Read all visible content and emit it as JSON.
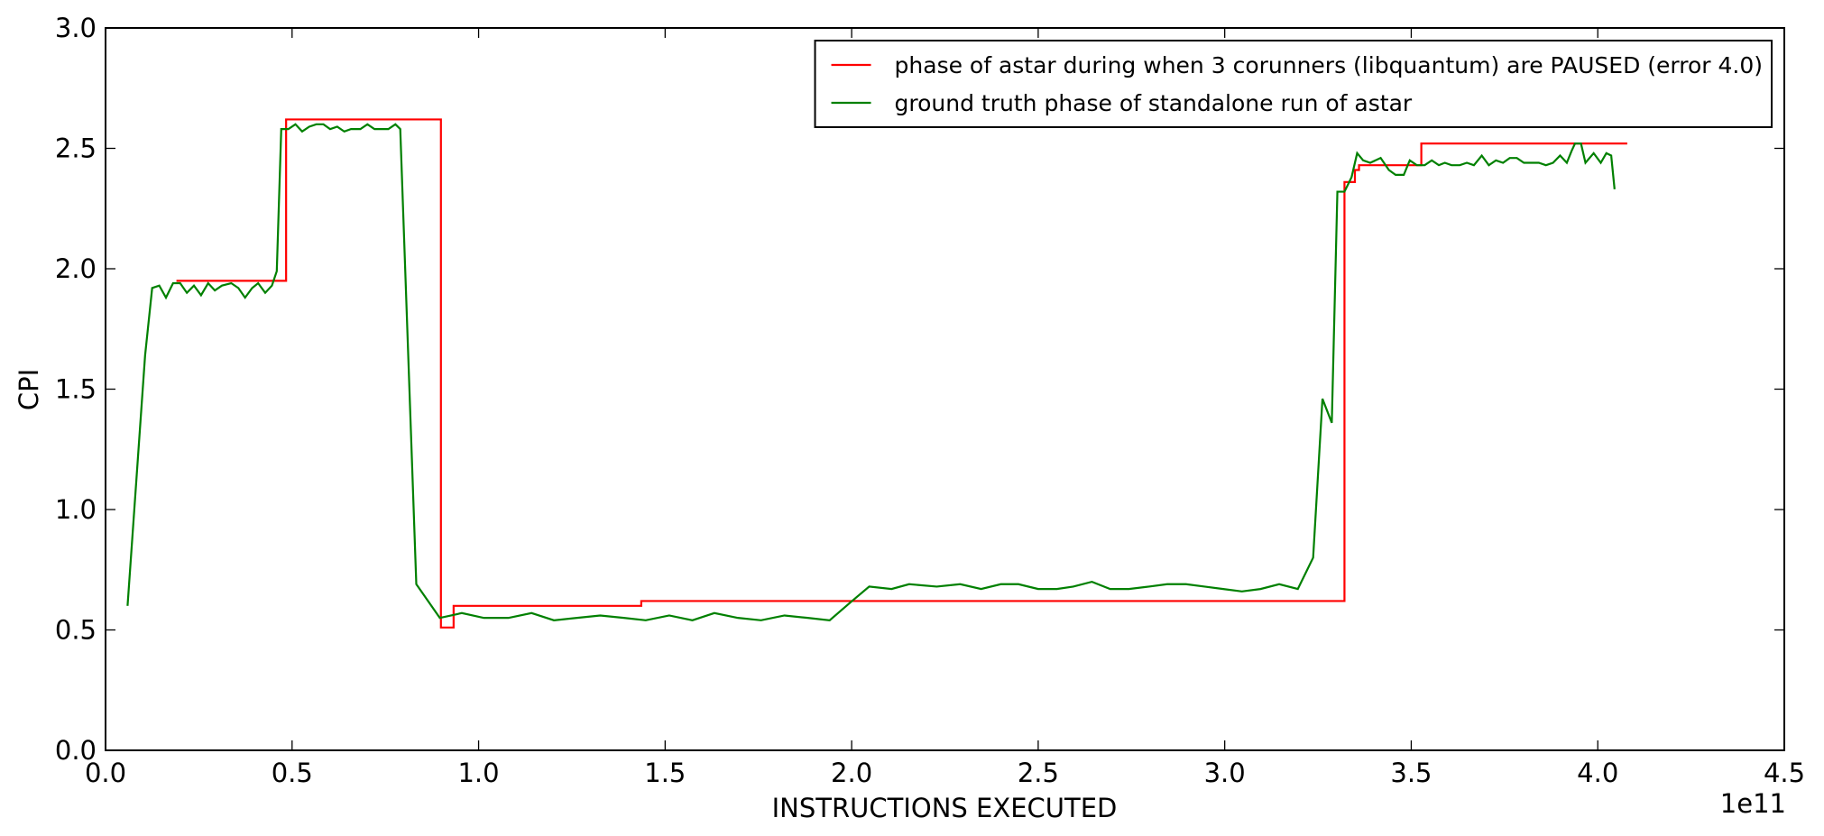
{
  "chart_data": {
    "type": "line",
    "xlabel": "INSTRUCTIONS EXECUTED",
    "ylabel": "CPI",
    "x_offset_label": "1e11",
    "xlim": [
      0,
      4.5
    ],
    "xticks": [
      {
        "value": 0,
        "label": "0.0"
      },
      0.5,
      {
        "value": 1,
        "label": "1.0"
      },
      1.5,
      {
        "value": 2,
        "label": "2.0"
      },
      2.5,
      {
        "value": 3,
        "label": "3.0"
      },
      3.5,
      {
        "value": 4,
        "label": "4.0"
      },
      4.5
    ],
    "ylim": [
      0,
      3
    ],
    "yticks": [
      {
        "value": 0,
        "label": "0.0"
      },
      0.5,
      {
        "value": 1,
        "label": "1.0"
      },
      1.5,
      {
        "value": 2,
        "label": "2.0"
      },
      2.5,
      {
        "value": 3,
        "label": "3.0"
      }
    ],
    "legend": "upper right",
    "series": [
      {
        "name": "phase of astar during when 3 corunners (libquantum) are PAUSED (error 4.0)",
        "color": "#ff0000",
        "x": [
          0.19,
          0.484,
          0.484,
          0.899,
          0.899,
          0.933,
          0.933,
          1.436,
          1.436,
          3.321,
          3.321,
          3.349,
          3.349,
          3.36,
          3.36,
          3.527,
          3.527,
          4.079
        ],
        "values": [
          1.95,
          1.95,
          2.62,
          2.62,
          0.51,
          0.51,
          0.6,
          0.6,
          0.62,
          0.62,
          2.36,
          2.36,
          2.41,
          2.41,
          2.43,
          2.43,
          2.52,
          2.52
        ]
      },
      {
        "name": "ground truth phase of standalone run of astar",
        "color": "#008000",
        "x": [
          0.059,
          0.106,
          0.125,
          0.144,
          0.162,
          0.181,
          0.2,
          0.218,
          0.237,
          0.256,
          0.275,
          0.293,
          0.312,
          0.337,
          0.356,
          0.374,
          0.393,
          0.409,
          0.428,
          0.446,
          0.459,
          0.471,
          0.49,
          0.509,
          0.527,
          0.546,
          0.565,
          0.584,
          0.602,
          0.621,
          0.64,
          0.658,
          0.683,
          0.702,
          0.721,
          0.74,
          0.758,
          0.777,
          0.79,
          0.833,
          0.896,
          0.955,
          1.014,
          1.08,
          1.142,
          1.202,
          1.264,
          1.326,
          1.389,
          1.448,
          1.511,
          1.573,
          1.632,
          1.695,
          1.757,
          1.82,
          1.882,
          1.941,
          2.001,
          2.047,
          2.107,
          2.154,
          2.228,
          2.291,
          2.347,
          2.4,
          2.447,
          2.5,
          2.55,
          2.594,
          2.644,
          2.693,
          2.743,
          2.797,
          2.846,
          2.896,
          2.946,
          2.996,
          3.046,
          3.096,
          3.146,
          3.196,
          3.237,
          3.262,
          3.287,
          3.302,
          3.321,
          3.34,
          3.355,
          3.371,
          3.39,
          3.418,
          3.44,
          3.458,
          3.48,
          3.496,
          3.515,
          3.536,
          3.555,
          3.574,
          3.59,
          3.608,
          3.63,
          3.649,
          3.668,
          3.689,
          3.708,
          3.727,
          3.746,
          3.764,
          3.783,
          3.802,
          3.823,
          3.842,
          3.861,
          3.88,
          3.899,
          3.917,
          3.93,
          3.939,
          3.955,
          3.967,
          3.989,
          4.008,
          4.023,
          4.036,
          4.045
        ],
        "values": [
          0.6,
          1.64,
          1.92,
          1.93,
          1.88,
          1.94,
          1.94,
          1.9,
          1.93,
          1.89,
          1.94,
          1.91,
          1.93,
          1.94,
          1.92,
          1.88,
          1.92,
          1.94,
          1.9,
          1.93,
          1.99,
          2.58,
          2.58,
          2.6,
          2.57,
          2.59,
          2.6,
          2.6,
          2.58,
          2.59,
          2.57,
          2.58,
          2.58,
          2.6,
          2.58,
          2.58,
          2.58,
          2.6,
          2.58,
          0.69,
          0.55,
          0.57,
          0.55,
          0.55,
          0.57,
          0.54,
          0.55,
          0.56,
          0.55,
          0.54,
          0.56,
          0.54,
          0.57,
          0.55,
          0.54,
          0.56,
          0.55,
          0.54,
          0.62,
          0.68,
          0.67,
          0.69,
          0.68,
          0.69,
          0.67,
          0.69,
          0.69,
          0.67,
          0.67,
          0.68,
          0.7,
          0.67,
          0.67,
          0.68,
          0.69,
          0.69,
          0.68,
          0.67,
          0.66,
          0.67,
          0.69,
          0.67,
          0.8,
          1.46,
          1.36,
          2.32,
          2.32,
          2.38,
          2.48,
          2.45,
          2.44,
          2.46,
          2.41,
          2.39,
          2.39,
          2.45,
          2.43,
          2.43,
          2.45,
          2.43,
          2.44,
          2.43,
          2.43,
          2.44,
          2.43,
          2.47,
          2.43,
          2.45,
          2.44,
          2.46,
          2.46,
          2.44,
          2.44,
          2.44,
          2.43,
          2.44,
          2.47,
          2.44,
          2.49,
          2.52,
          2.52,
          2.44,
          2.48,
          2.44,
          2.48,
          2.47,
          2.33
        ]
      }
    ]
  }
}
